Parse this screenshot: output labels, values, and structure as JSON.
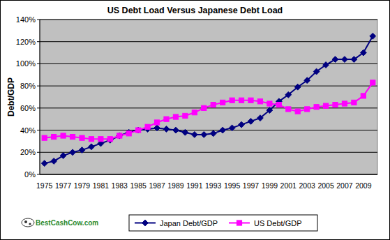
{
  "chart_data": {
    "type": "line",
    "title": "US Debt Load Versus Japanese Debt Load",
    "y_label": "Debt/GDP",
    "source": "BestCashCow.com",
    "categories": [
      "1975",
      null,
      "1977",
      null,
      "1979",
      null,
      "1981",
      null,
      "1983",
      null,
      "1985",
      null,
      "1987",
      null,
      "1989",
      null,
      "1991",
      null,
      "1993",
      null,
      "1995",
      null,
      "1997",
      null,
      "1999",
      null,
      "2001",
      null,
      "2003",
      null,
      "2005",
      null,
      "2007",
      null,
      "2009",
      null
    ],
    "series": [
      {
        "name": "Japan Debt/GDP",
        "color": "#000080",
        "marker": "diamond",
        "values": [
          10,
          12,
          17,
          20,
          22,
          25,
          28,
          31,
          35,
          38,
          40,
          41,
          42,
          41,
          40,
          38,
          36,
          36,
          37,
          40,
          42,
          45,
          48,
          51,
          58,
          66,
          72,
          79,
          85,
          93,
          99,
          104,
          104,
          104,
          110,
          125
        ]
      },
      {
        "name": "US Debt/GDP",
        "color": "#ff00ff",
        "marker": "square",
        "values": [
          33,
          34,
          35,
          34,
          33,
          32,
          32,
          32,
          35,
          37,
          40,
          43,
          47,
          50,
          52,
          53,
          56,
          60,
          63,
          65,
          67,
          67,
          67,
          66,
          64,
          63,
          59,
          57,
          59,
          61,
          62,
          63,
          64,
          65,
          71,
          83
        ]
      }
    ],
    "ylim": [
      0,
      140
    ],
    "yticks": [
      {
        "value": 0,
        "label": "0%"
      },
      {
        "value": 20,
        "label": "20%"
      },
      {
        "value": 40,
        "label": "40%"
      },
      {
        "value": 60,
        "label": "60%"
      },
      {
        "value": 80,
        "label": "80%"
      },
      {
        "value": 100,
        "label": "100%"
      },
      {
        "value": 120,
        "label": "120%"
      },
      {
        "value": 140,
        "label": "140%"
      }
    ],
    "grid": true,
    "legend": "bottom"
  }
}
